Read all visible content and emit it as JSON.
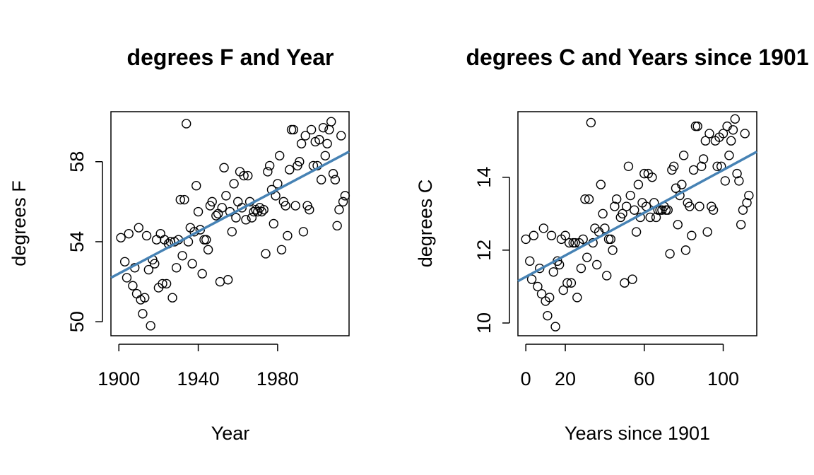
{
  "chart_data": [
    {
      "type": "scatter",
      "title": "degrees F and Year",
      "xlabel": "Year",
      "ylabel": "degrees F",
      "xlim": [
        1896,
        2016
      ],
      "ylim": [
        49.3,
        60.5
      ],
      "x_ticks": [
        1900,
        1940,
        1980
      ],
      "y_ticks": [
        50,
        54,
        58
      ],
      "fit_color": "#4682b4",
      "fit_line": {
        "x": [
          1896,
          2016
        ],
        "y": [
          52.2,
          58.5
        ]
      },
      "points": [
        [
          1901,
          54.2
        ],
        [
          1903,
          53.0
        ],
        [
          1904,
          52.2
        ],
        [
          1905,
          54.4
        ],
        [
          1907,
          51.8
        ],
        [
          1908,
          52.7
        ],
        [
          1909,
          51.4
        ],
        [
          1910,
          54.7
        ],
        [
          1911,
          51.1
        ],
        [
          1912,
          50.4
        ],
        [
          1913,
          51.2
        ],
        [
          1914,
          54.3
        ],
        [
          1915,
          52.6
        ],
        [
          1916,
          49.8
        ],
        [
          1917,
          53.1
        ],
        [
          1918,
          52.9
        ],
        [
          1919,
          54.1
        ],
        [
          1920,
          51.7
        ],
        [
          1921,
          54.4
        ],
        [
          1922,
          51.9
        ],
        [
          1923,
          54.1
        ],
        [
          1924,
          51.9
        ],
        [
          1925,
          53.9
        ],
        [
          1926,
          54.0
        ],
        [
          1927,
          51.2
        ],
        [
          1928,
          54.0
        ],
        [
          1929,
          52.7
        ],
        [
          1930,
          54.1
        ],
        [
          1931,
          56.1
        ],
        [
          1932,
          53.3
        ],
        [
          1933,
          56.1
        ],
        [
          1934,
          59.9
        ],
        [
          1935,
          54.0
        ],
        [
          1936,
          54.7
        ],
        [
          1937,
          52.9
        ],
        [
          1938,
          54.5
        ],
        [
          1939,
          56.8
        ],
        [
          1940,
          55.5
        ],
        [
          1941,
          54.6
        ],
        [
          1942,
          52.4
        ],
        [
          1943,
          54.1
        ],
        [
          1944,
          54.1
        ],
        [
          1945,
          53.6
        ],
        [
          1946,
          55.8
        ],
        [
          1947,
          56.0
        ],
        [
          1949,
          55.3
        ],
        [
          1950,
          55.4
        ],
        [
          1951,
          52.0
        ],
        [
          1952,
          55.7
        ],
        [
          1953,
          57.7
        ],
        [
          1954,
          56.3
        ],
        [
          1955,
          52.1
        ],
        [
          1956,
          55.5
        ],
        [
          1957,
          54.5
        ],
        [
          1958,
          56.9
        ],
        [
          1959,
          55.2
        ],
        [
          1960,
          56.0
        ],
        [
          1961,
          57.5
        ],
        [
          1962,
          55.7
        ],
        [
          1963,
          57.3
        ],
        [
          1964,
          55.1
        ],
        [
          1965,
          57.3
        ],
        [
          1966,
          56.0
        ],
        [
          1967,
          55.2
        ],
        [
          1968,
          55.5
        ],
        [
          1969,
          55.6
        ],
        [
          1970,
          55.5
        ],
        [
          1971,
          55.7
        ],
        [
          1972,
          55.5
        ],
        [
          1973,
          55.6
        ],
        [
          1974,
          53.4
        ],
        [
          1975,
          57.5
        ],
        [
          1976,
          57.8
        ],
        [
          1977,
          56.6
        ],
        [
          1978,
          54.9
        ],
        [
          1979,
          56.3
        ],
        [
          1980,
          56.9
        ],
        [
          1981,
          58.3
        ],
        [
          1982,
          53.6
        ],
        [
          1983,
          56.0
        ],
        [
          1984,
          55.8
        ],
        [
          1985,
          54.3
        ],
        [
          1986,
          57.6
        ],
        [
          1987,
          59.6
        ],
        [
          1988,
          59.6
        ],
        [
          1989,
          55.8
        ],
        [
          1990,
          57.8
        ],
        [
          1991,
          58.0
        ],
        [
          1992,
          58.9
        ],
        [
          1993,
          54.5
        ],
        [
          1994,
          59.3
        ],
        [
          1995,
          55.8
        ],
        [
          1996,
          55.6
        ],
        [
          1997,
          59.6
        ],
        [
          1998,
          57.8
        ],
        [
          1999,
          59.0
        ],
        [
          2000,
          57.8
        ],
        [
          2001,
          59.1
        ],
        [
          2002,
          57.1
        ],
        [
          2003,
          59.7
        ],
        [
          2004,
          58.3
        ],
        [
          2005,
          58.9
        ],
        [
          2006,
          59.6
        ],
        [
          2007,
          60.0
        ],
        [
          2008,
          57.4
        ],
        [
          2009,
          57.1
        ],
        [
          2010,
          54.8
        ],
        [
          2011,
          55.6
        ],
        [
          2012,
          59.3
        ],
        [
          2013,
          56.0
        ],
        [
          2014,
          56.3
        ]
      ]
    },
    {
      "type": "scatter",
      "title": "degrees C and Years since 1901",
      "xlabel": "Years since 1901",
      "ylabel": "degrees C",
      "xlim": [
        -4,
        117
      ],
      "ylim": [
        9.65,
        15.8
      ],
      "x_ticks": [
        0,
        20,
        60,
        100
      ],
      "y_ticks": [
        10,
        12,
        14
      ],
      "fit_color": "#4682b4",
      "fit_line": {
        "x": [
          -4,
          117
        ],
        "y": [
          11.15,
          14.7
        ]
      },
      "points": [
        [
          0,
          12.3
        ],
        [
          2,
          11.7
        ],
        [
          3,
          11.2
        ],
        [
          4,
          12.4
        ],
        [
          6,
          11.0
        ],
        [
          7,
          11.5
        ],
        [
          8,
          10.8
        ],
        [
          9,
          12.6
        ],
        [
          10,
          10.6
        ],
        [
          11,
          10.2
        ],
        [
          12,
          10.7
        ],
        [
          13,
          12.4
        ],
        [
          14,
          11.4
        ],
        [
          15,
          9.9
        ],
        [
          16,
          11.7
        ],
        [
          17,
          11.6
        ],
        [
          18,
          12.3
        ],
        [
          19,
          10.9
        ],
        [
          20,
          12.4
        ],
        [
          21,
          11.1
        ],
        [
          22,
          12.2
        ],
        [
          23,
          11.1
        ],
        [
          24,
          12.2
        ],
        [
          25,
          12.2
        ],
        [
          26,
          10.7
        ],
        [
          27,
          12.2
        ],
        [
          28,
          11.5
        ],
        [
          29,
          12.3
        ],
        [
          30,
          13.4
        ],
        [
          31,
          11.8
        ],
        [
          32,
          13.4
        ],
        [
          33,
          15.5
        ],
        [
          34,
          12.2
        ],
        [
          35,
          12.6
        ],
        [
          36,
          11.6
        ],
        [
          37,
          12.5
        ],
        [
          38,
          13.8
        ],
        [
          39,
          13.0
        ],
        [
          40,
          12.6
        ],
        [
          41,
          11.3
        ],
        [
          42,
          12.3
        ],
        [
          43,
          12.3
        ],
        [
          44,
          12.0
        ],
        [
          45,
          13.2
        ],
        [
          46,
          13.4
        ],
        [
          48,
          12.9
        ],
        [
          49,
          13.0
        ],
        [
          50,
          11.1
        ],
        [
          51,
          13.2
        ],
        [
          52,
          14.3
        ],
        [
          53,
          13.5
        ],
        [
          54,
          11.2
        ],
        [
          55,
          13.1
        ],
        [
          56,
          12.5
        ],
        [
          57,
          13.8
        ],
        [
          58,
          12.9
        ],
        [
          59,
          13.3
        ],
        [
          60,
          14.1
        ],
        [
          61,
          13.2
        ],
        [
          62,
          14.1
        ],
        [
          63,
          12.9
        ],
        [
          64,
          14.0
        ],
        [
          65,
          13.3
        ],
        [
          66,
          12.9
        ],
        [
          67,
          13.1
        ],
        [
          68,
          13.1
        ],
        [
          69,
          13.1
        ],
        [
          70,
          13.2
        ],
        [
          71,
          13.1
        ],
        [
          72,
          13.1
        ],
        [
          73,
          11.9
        ],
        [
          74,
          14.2
        ],
        [
          75,
          14.3
        ],
        [
          76,
          13.7
        ],
        [
          77,
          12.7
        ],
        [
          78,
          13.5
        ],
        [
          79,
          13.8
        ],
        [
          80,
          14.6
        ],
        [
          81,
          12.0
        ],
        [
          82,
          13.3
        ],
        [
          83,
          13.2
        ],
        [
          84,
          12.4
        ],
        [
          85,
          14.2
        ],
        [
          86,
          15.4
        ],
        [
          87,
          15.4
        ],
        [
          88,
          13.2
        ],
        [
          89,
          14.3
        ],
        [
          90,
          14.5
        ],
        [
          91,
          15.0
        ],
        [
          92,
          12.5
        ],
        [
          93,
          15.2
        ],
        [
          94,
          13.2
        ],
        [
          95,
          13.1
        ],
        [
          96,
          15.0
        ],
        [
          97,
          14.3
        ],
        [
          98,
          15.1
        ],
        [
          99,
          14.3
        ],
        [
          100,
          15.2
        ],
        [
          101,
          13.9
        ],
        [
          102,
          15.4
        ],
        [
          103,
          14.6
        ],
        [
          104,
          15.0
        ],
        [
          105,
          15.3
        ],
        [
          106,
          15.6
        ],
        [
          107,
          14.1
        ],
        [
          108,
          13.9
        ],
        [
          109,
          12.7
        ],
        [
          110,
          13.1
        ],
        [
          111,
          15.2
        ],
        [
          112,
          13.3
        ],
        [
          113,
          13.5
        ]
      ]
    }
  ]
}
